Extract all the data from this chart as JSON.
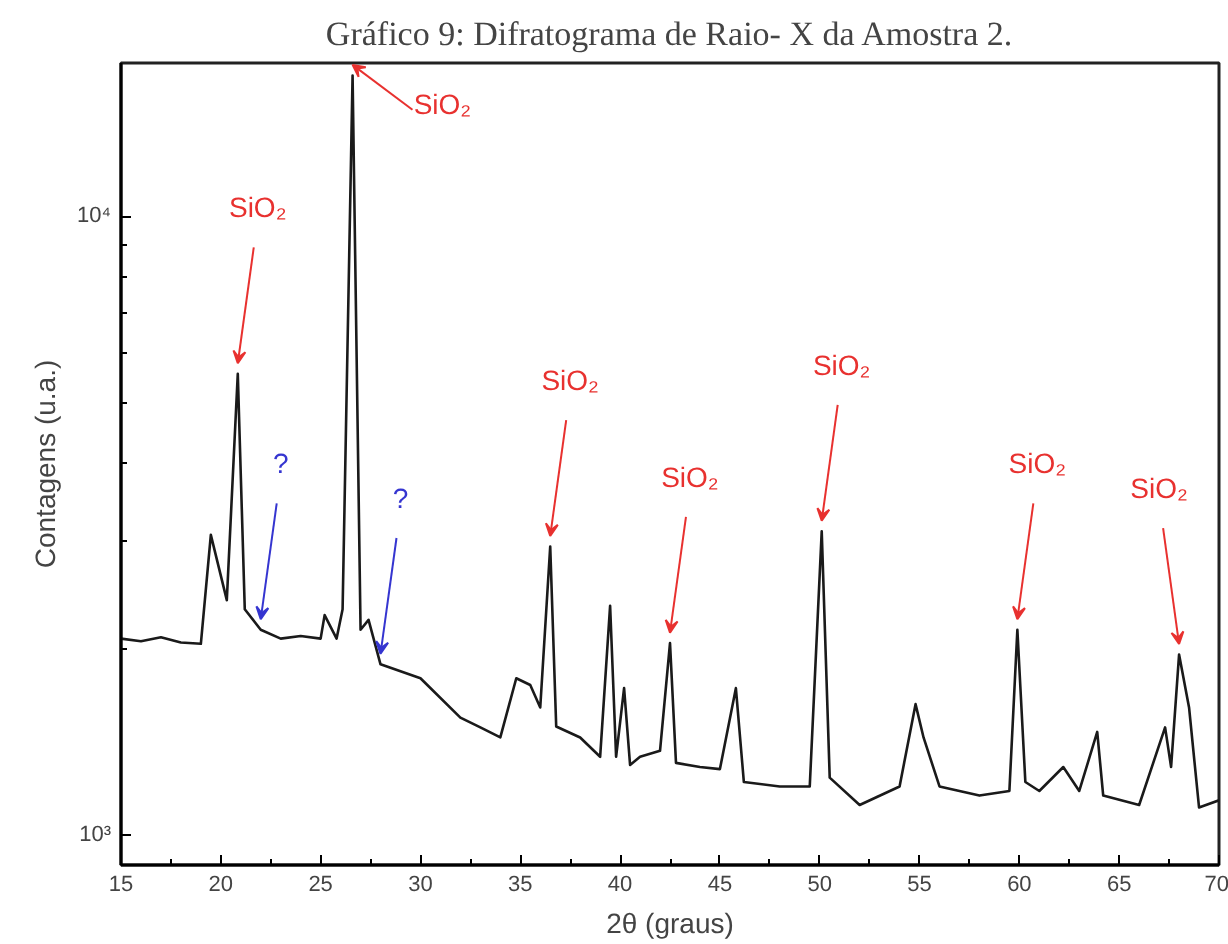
{
  "chart_data": {
    "type": "line",
    "title": "Gráfico 9: Difratograma de Raio- X da Amostra 2.",
    "xlabel": "2θ (graus)",
    "ylabel": "Contagens (u.a.)",
    "x": [
      15,
      16,
      17,
      18,
      19,
      19.5,
      20.3,
      20.85,
      21.2,
      22,
      23,
      24,
      25,
      25.2,
      25.8,
      26.1,
      26.6,
      27.0,
      27.4,
      28,
      30,
      32,
      33,
      34,
      34.8,
      35.5,
      36,
      36.5,
      36.8,
      38,
      39,
      39.5,
      39.8,
      40.2,
      40.5,
      41,
      42,
      42.5,
      42.8,
      44,
      45,
      45.8,
      46.2,
      48,
      49.5,
      50.1,
      50.5,
      52,
      54,
      54.8,
      55.2,
      56,
      58,
      59.5,
      59.9,
      60.3,
      61,
      62.2,
      63,
      63.9,
      64.2,
      66,
      67.3,
      67.6,
      68,
      68.5,
      69,
      70
    ],
    "series": [
      {
        "color": "#1a1a1a",
        "values": [
          2080,
          2060,
          2090,
          2050,
          2040,
          3060,
          2400,
          5570,
          2320,
          2150,
          2080,
          2100,
          2080,
          2270,
          2080,
          2320,
          16900,
          2150,
          2230,
          1890,
          1795,
          1550,
          1495,
          1440,
          1795,
          1750,
          1610,
          2930,
          1500,
          1440,
          1340,
          2350,
          1340,
          1730,
          1300,
          1340,
          1370,
          2045,
          1310,
          1290,
          1280,
          1730,
          1220,
          1200,
          1200,
          3100,
          1240,
          1120,
          1200,
          1630,
          1440,
          1200,
          1160,
          1180,
          2150,
          1220,
          1180,
          1290,
          1180,
          1470,
          1160,
          1120,
          1495,
          1290,
          1960,
          1610,
          1110,
          1140
        ]
      }
    ],
    "xlim": [
      15,
      70
    ],
    "ylim": [
      896,
      17700
    ],
    "xticks": [
      15,
      20,
      25,
      30,
      35,
      40,
      45,
      50,
      55,
      60,
      65,
      70
    ],
    "yticks": [
      {
        "value": 1000,
        "label": "10³"
      },
      {
        "value": 2000,
        "label": null
      },
      {
        "value": 3000,
        "label": null
      },
      {
        "value": 4000,
        "label": null
      },
      {
        "value": 5000,
        "label": null
      },
      {
        "value": 6000,
        "label": null
      },
      {
        "value": 7000,
        "label": null
      },
      {
        "value": 8000,
        "label": null
      },
      {
        "value": 9000,
        "label": null
      },
      {
        "value": 10000,
        "label": "10⁴"
      }
    ],
    "log": "y",
    "grid": false,
    "marker": "none",
    "line_style": "solid",
    "annotations": [
      {
        "text": "SiO₂",
        "x": 26.6,
        "y": 16900
      },
      {
        "text": "SiO₂",
        "x": 20.85,
        "y": 5570
      },
      {
        "text": "?",
        "x": 22,
        "y": 2150
      },
      {
        "text": "?",
        "x": 28,
        "y": 1890
      },
      {
        "text": "SiO₂",
        "x": 36.5,
        "y": 2930
      },
      {
        "text": "SiO₂",
        "x": 42.5,
        "y": 2045
      },
      {
        "text": "SiO₂",
        "x": 50.1,
        "y": 3100
      },
      {
        "text": "SiO₂",
        "x": 59.9,
        "y": 2150
      },
      {
        "text": "SiO₂",
        "x": 68,
        "y": 1960
      }
    ]
  }
}
